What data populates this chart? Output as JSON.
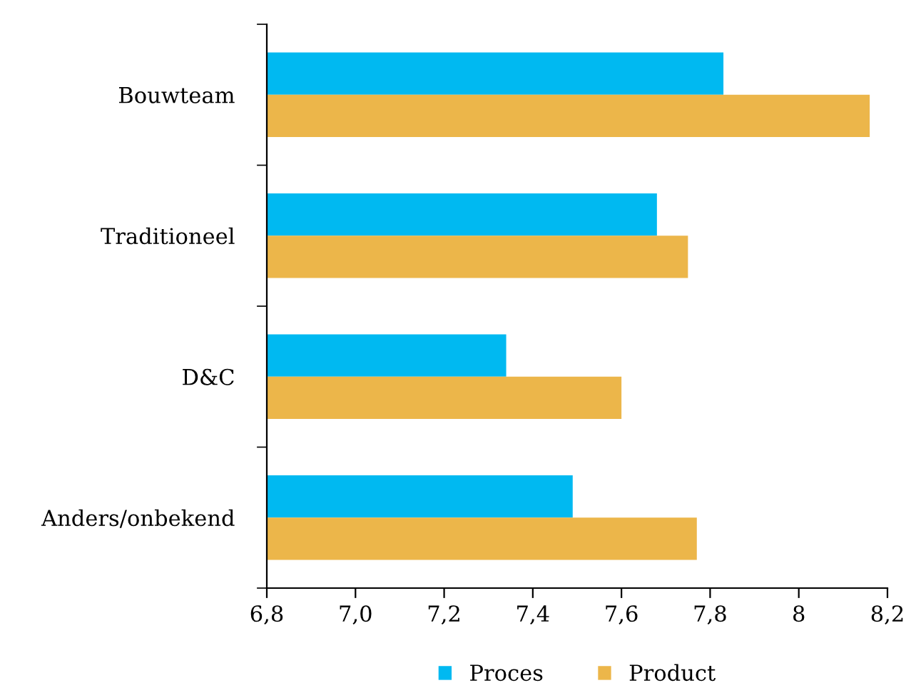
{
  "chart_data": {
    "type": "bar",
    "orientation": "horizontal",
    "categories": [
      "Bouwteam",
      "Traditioneel",
      "D&C",
      "Anders/onbekend"
    ],
    "series": [
      {
        "name": "Proces",
        "color": "#00b9f1",
        "values": [
          7.83,
          7.68,
          7.34,
          7.49
        ]
      },
      {
        "name": "Product",
        "color": "#ecb64a",
        "values": [
          8.16,
          7.75,
          7.6,
          7.77
        ]
      }
    ],
    "xlim": [
      6.8,
      8.2
    ],
    "xticks": [
      {
        "value": 6.8,
        "label": "6,8"
      },
      {
        "value": 7.0,
        "label": "7,0"
      },
      {
        "value": 7.2,
        "label": "7,2"
      },
      {
        "value": 7.4,
        "label": "7,4"
      },
      {
        "value": 7.6,
        "label": "7,6"
      },
      {
        "value": 7.8,
        "label": "7,8"
      },
      {
        "value": 8.0,
        "label": "8"
      },
      {
        "value": 8.2,
        "label": "8,2"
      }
    ],
    "grid": false,
    "legend": "bottom"
  }
}
